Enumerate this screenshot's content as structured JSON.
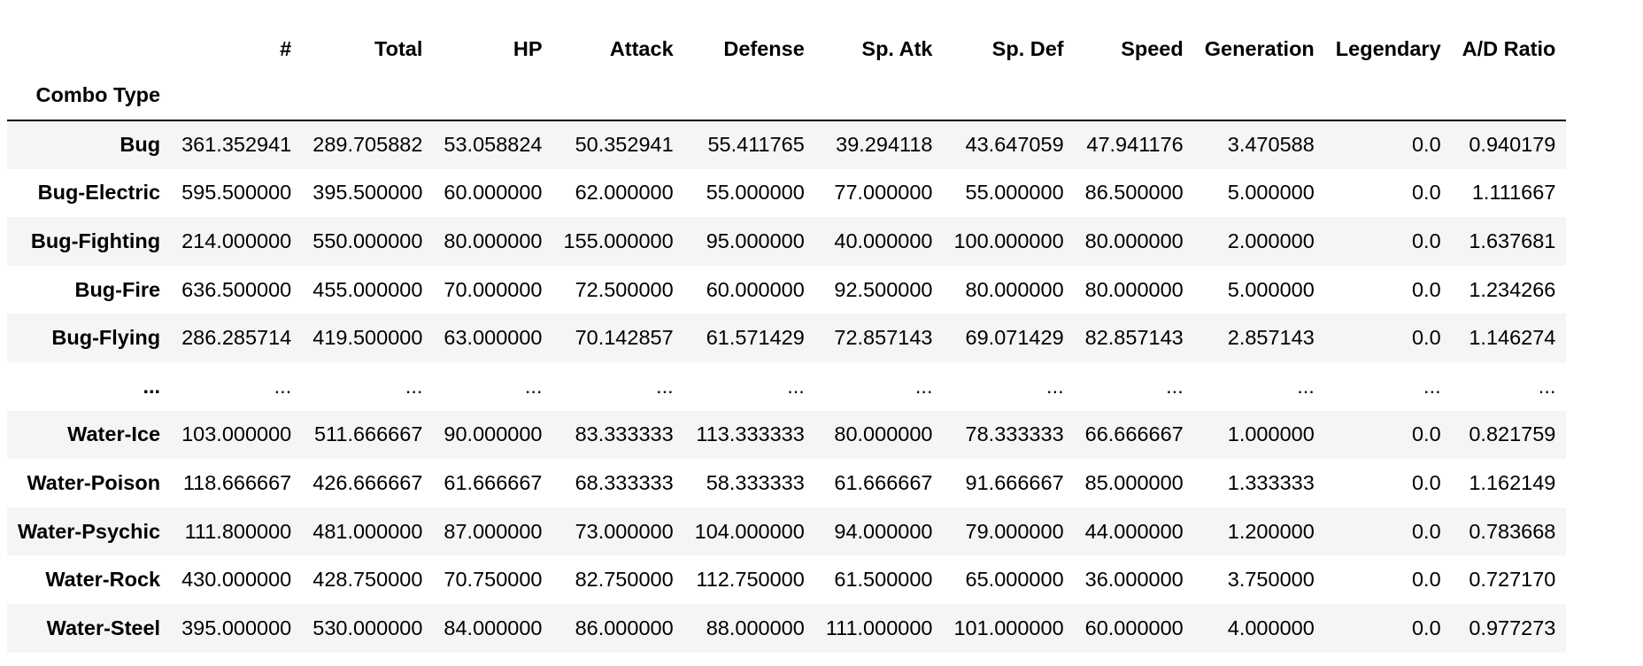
{
  "table": {
    "columns": [
      "#",
      "Total",
      "HP",
      "Attack",
      "Defense",
      "Sp. Atk",
      "Sp. Def",
      "Speed",
      "Generation",
      "Legendary",
      "A/D Ratio"
    ],
    "index_name": "Combo Type",
    "rows": [
      {
        "label": "Bug",
        "cells": [
          "361.352941",
          "289.705882",
          "53.058824",
          "50.352941",
          "55.411765",
          "39.294118",
          "43.647059",
          "47.941176",
          "3.470588",
          "0.0",
          "0.940179"
        ]
      },
      {
        "label": "Bug-Electric",
        "cells": [
          "595.500000",
          "395.500000",
          "60.000000",
          "62.000000",
          "55.000000",
          "77.000000",
          "55.000000",
          "86.500000",
          "5.000000",
          "0.0",
          "1.111667"
        ]
      },
      {
        "label": "Bug-Fighting",
        "cells": [
          "214.000000",
          "550.000000",
          "80.000000",
          "155.000000",
          "95.000000",
          "40.000000",
          "100.000000",
          "80.000000",
          "2.000000",
          "0.0",
          "1.637681"
        ]
      },
      {
        "label": "Bug-Fire",
        "cells": [
          "636.500000",
          "455.000000",
          "70.000000",
          "72.500000",
          "60.000000",
          "92.500000",
          "80.000000",
          "80.000000",
          "5.000000",
          "0.0",
          "1.234266"
        ]
      },
      {
        "label": "Bug-Flying",
        "cells": [
          "286.285714",
          "419.500000",
          "63.000000",
          "70.142857",
          "61.571429",
          "72.857143",
          "69.071429",
          "82.857143",
          "2.857143",
          "0.0",
          "1.146274"
        ]
      },
      {
        "label": "...",
        "cells": [
          "...",
          "...",
          "...",
          "...",
          "...",
          "...",
          "...",
          "...",
          "...",
          "...",
          "..."
        ]
      },
      {
        "label": "Water-Ice",
        "cells": [
          "103.000000",
          "511.666667",
          "90.000000",
          "83.333333",
          "113.333333",
          "80.000000",
          "78.333333",
          "66.666667",
          "1.000000",
          "0.0",
          "0.821759"
        ]
      },
      {
        "label": "Water-Poison",
        "cells": [
          "118.666667",
          "426.666667",
          "61.666667",
          "68.333333",
          "58.333333",
          "61.666667",
          "91.666667",
          "85.000000",
          "1.333333",
          "0.0",
          "1.162149"
        ]
      },
      {
        "label": "Water-Psychic",
        "cells": [
          "111.800000",
          "481.000000",
          "87.000000",
          "73.000000",
          "104.000000",
          "94.000000",
          "79.000000",
          "44.000000",
          "1.200000",
          "0.0",
          "0.783668"
        ]
      },
      {
        "label": "Water-Rock",
        "cells": [
          "430.000000",
          "428.750000",
          "70.750000",
          "82.750000",
          "112.750000",
          "61.500000",
          "65.000000",
          "36.000000",
          "3.750000",
          "0.0",
          "0.727170"
        ]
      },
      {
        "label": "Water-Steel",
        "cells": [
          "395.000000",
          "530.000000",
          "84.000000",
          "86.000000",
          "88.000000",
          "111.000000",
          "101.000000",
          "60.000000",
          "4.000000",
          "0.0",
          "0.977273"
        ]
      }
    ]
  }
}
